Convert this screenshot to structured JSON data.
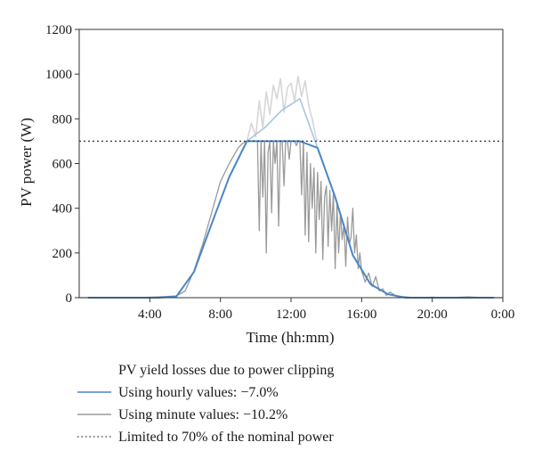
{
  "chart_data": {
    "type": "line",
    "xlabel": "Time (hh:mm)",
    "ylabel": "PV power (W)",
    "xlim": [
      0,
      24
    ],
    "ylim": [
      0,
      1200
    ],
    "x_ticks": [
      {
        "value": 4,
        "label": "4:00"
      },
      {
        "value": 8,
        "label": "8:00"
      },
      {
        "value": 12,
        "label": "12:00"
      },
      {
        "value": 16,
        "label": "16:00"
      },
      {
        "value": 20,
        "label": "20:00"
      },
      {
        "value": 24,
        "label": "0:00"
      }
    ],
    "y_ticks": [
      0,
      200,
      400,
      600,
      800,
      1000,
      1200
    ],
    "grid": false,
    "colors": {
      "hourly": "#4a86c5",
      "hourly_unclipped": "#a9c5e6",
      "minute": "#9a9a9a",
      "minute_unclipped": "#d6d6d6",
      "limit": "#333333"
    },
    "limit_value": 700,
    "series": [
      {
        "name": "Using hourly values: −7.0%",
        "role": "hourly-clipped",
        "x": [
          0.5,
          1.5,
          2.5,
          3.5,
          4.5,
          5.5,
          6.5,
          7.5,
          8.5,
          9.5,
          10.5,
          11.5,
          12.5,
          13.5,
          14.5,
          15.5,
          16.5,
          17.5,
          18.5,
          19.5,
          20.5,
          21.5,
          22.5,
          23.5
        ],
        "values": [
          0,
          0,
          0,
          0,
          0,
          5,
          115,
          330,
          540,
          700,
          700,
          700,
          700,
          670,
          450,
          190,
          60,
          15,
          0,
          0,
          0,
          0,
          0,
          0
        ]
      },
      {
        "name": "",
        "role": "hourly-unclipped",
        "x": [
          9.5,
          10.5,
          11.5,
          12.5,
          13.5
        ],
        "values": [
          700,
          760,
          840,
          890,
          670
        ]
      },
      {
        "name": "Using minute values: −10.2%",
        "role": "minute-clipped",
        "x": [
          0,
          1,
          2,
          3,
          4,
          4.5,
          5,
          5.5,
          6,
          6.5,
          7,
          7.5,
          8,
          8.5,
          9,
          9.25,
          9.5,
          9.75,
          10,
          10.1,
          10.2,
          10.3,
          10.4,
          10.5,
          10.6,
          10.7,
          10.8,
          10.9,
          11,
          11.1,
          11.2,
          11.3,
          11.4,
          11.5,
          11.6,
          11.7,
          11.8,
          11.9,
          12,
          12.1,
          12.2,
          12.3,
          12.4,
          12.5,
          12.6,
          12.7,
          12.8,
          12.9,
          13,
          13.1,
          13.2,
          13.3,
          13.4,
          13.5,
          13.6,
          13.7,
          13.8,
          13.9,
          14,
          14.1,
          14.2,
          14.3,
          14.4,
          14.5,
          14.6,
          14.7,
          14.8,
          14.9,
          15,
          15.1,
          15.2,
          15.3,
          15.4,
          15.5,
          15.6,
          15.7,
          15.8,
          15.9,
          16,
          16.2,
          16.4,
          16.6,
          16.8,
          17,
          17.2,
          17.4,
          17.6,
          18,
          18.5,
          19,
          20,
          21,
          22,
          23,
          24
        ],
        "values": [
          0,
          0,
          0,
          0,
          2,
          3,
          5,
          8,
          30,
          120,
          240,
          380,
          520,
          600,
          670,
          690,
          700,
          700,
          700,
          700,
          300,
          700,
          450,
          700,
          200,
          650,
          700,
          380,
          700,
          600,
          700,
          320,
          700,
          700,
          500,
          700,
          700,
          620,
          700,
          700,
          700,
          680,
          700,
          700,
          460,
          700,
          280,
          650,
          250,
          600,
          400,
          580,
          200,
          560,
          350,
          520,
          170,
          450,
          500,
          230,
          480,
          300,
          470,
          130,
          420,
          200,
          380,
          260,
          330,
          140,
          360,
          240,
          270,
          400,
          200,
          280,
          130,
          200,
          120,
          70,
          110,
          50,
          95,
          30,
          40,
          10,
          25,
          5,
          3,
          0,
          2,
          0,
          3,
          0,
          0
        ]
      },
      {
        "name": "",
        "role": "minute-unclipped",
        "x": [
          9.5,
          9.75,
          10,
          10.2,
          10.4,
          10.6,
          10.8,
          11,
          11.2,
          11.4,
          11.6,
          11.8,
          12,
          12.2,
          12.4,
          12.6,
          12.8,
          13,
          13.2,
          13.4,
          13.5
        ],
        "values": [
          700,
          780,
          720,
          880,
          760,
          920,
          820,
          950,
          890,
          980,
          830,
          940,
          960,
          880,
          990,
          900,
          970,
          860,
          800,
          720,
          700
        ]
      },
      {
        "name": "Limited to 70% of the nominal power",
        "role": "limit",
        "x": [
          0,
          24
        ],
        "values": [
          700,
          700
        ]
      }
    ],
    "legend": {
      "title": "PV yield losses due to power clipping",
      "position": "bottom",
      "entries": [
        {
          "label": "Using hourly values: −7.0%",
          "style": "solid",
          "color": "#4a86c5"
        },
        {
          "label": "Using minute values: −10.2%",
          "style": "solid",
          "color": "#9a9a9a"
        },
        {
          "label": "Limited to 70% of the nominal power",
          "style": "dotted",
          "color": "#333333"
        }
      ]
    }
  }
}
